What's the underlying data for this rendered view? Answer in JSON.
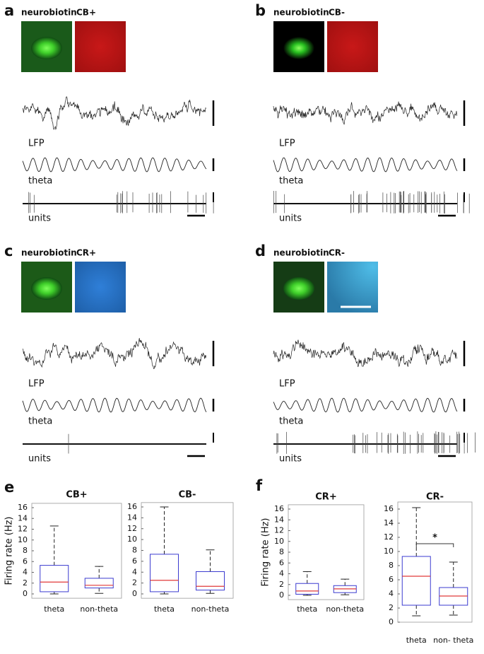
{
  "panels": [
    {
      "label": "a",
      "stain1": "neurobiotin",
      "stain2": "CB+",
      "traces": [
        "LFP",
        "theta",
        "units"
      ]
    },
    {
      "label": "b",
      "stain1": "neurobiotin",
      "stain2": "CB-",
      "traces": [
        "LFP",
        "theta",
        "units"
      ]
    },
    {
      "label": "c",
      "stain1": "neurobiotin",
      "stain2": "CR+",
      "traces": [
        "LFP",
        "theta",
        "units"
      ]
    },
    {
      "label": "d",
      "stain1": "neurobiotin",
      "stain2": "CR-",
      "traces": [
        "LFP",
        "theta",
        "units"
      ]
    }
  ],
  "box_panels": [
    "e",
    "f"
  ],
  "chart_data": [
    {
      "type": "box",
      "title": "CB+",
      "ylabel": "Firing rate (Hz)",
      "categories": [
        "theta",
        "non-theta"
      ],
      "boxes": [
        {
          "whislo": 0,
          "q1": 0.4,
          "median": 2.2,
          "q3": 5.3,
          "whishi": 12.6
        },
        {
          "whislo": 0.1,
          "q1": 1.1,
          "median": 1.6,
          "q3": 2.9,
          "whishi": 5.1
        }
      ],
      "ylim": [
        -0.8,
        16.8
      ],
      "yticks": [
        0,
        2,
        4,
        6,
        8,
        10,
        12,
        14,
        16
      ],
      "box_color": "#3b3bd0",
      "median_color": "#e03a3a"
    },
    {
      "type": "box",
      "title": "CB-",
      "categories": [
        "theta",
        "non-theta"
      ],
      "boxes": [
        {
          "whislo": 0,
          "q1": 0.4,
          "median": 2.5,
          "q3": 7.3,
          "whishi": 16
        },
        {
          "whislo": 0.1,
          "q1": 0.7,
          "median": 1.4,
          "q3": 4.1,
          "whishi": 8.1
        }
      ],
      "ylim": [
        -0.8,
        16.8
      ],
      "yticks": [
        0,
        2,
        4,
        6,
        8,
        10,
        12,
        14,
        16
      ],
      "box_color": "#3b3bd0",
      "median_color": "#e03a3a"
    },
    {
      "type": "box",
      "title": "CR+",
      "ylabel": "Firing rate (Hz)",
      "categories": [
        "theta",
        "non-theta"
      ],
      "boxes": [
        {
          "whislo": 0,
          "q1": 0.2,
          "median": 0.8,
          "q3": 2.2,
          "whishi": 4.4
        },
        {
          "whislo": 0.1,
          "q1": 0.5,
          "median": 1.2,
          "q3": 1.8,
          "whishi": 3.0
        }
      ],
      "ylim": [
        -0.8,
        16.8
      ],
      "yticks": [
        0,
        2,
        4,
        6,
        8,
        10,
        12,
        14,
        16
      ],
      "box_color": "#3b3bd0",
      "median_color": "#e03a3a"
    },
    {
      "type": "box",
      "title": "CR-",
      "categories": [
        "theta",
        "non- theta"
      ],
      "boxes": [
        {
          "whislo": 0.9,
          "q1": 2.4,
          "median": 6.5,
          "q3": 9.3,
          "whishi": 16.2
        },
        {
          "whislo": 1.0,
          "q1": 2.4,
          "median": 3.7,
          "q3": 4.9,
          "whishi": 8.5
        }
      ],
      "ylim": [
        0,
        17
      ],
      "yticks": [
        0,
        2,
        4,
        6,
        8,
        10,
        12,
        14,
        16
      ],
      "annotation": "*",
      "box_color": "#3b3bd0",
      "median_color": "#e03a3a"
    }
  ]
}
